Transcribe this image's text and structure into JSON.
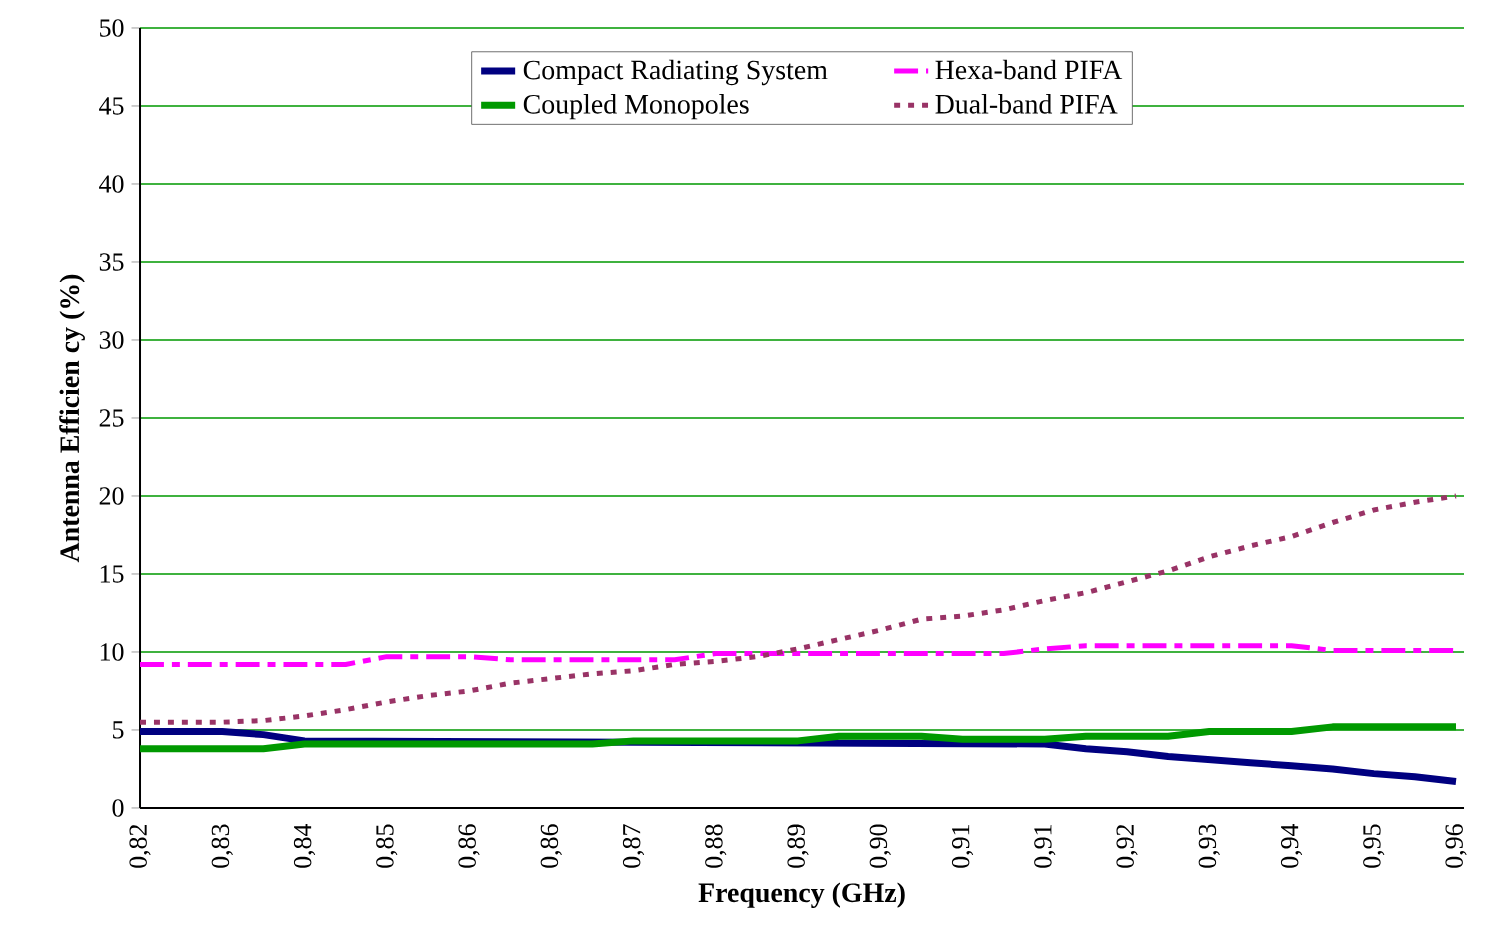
{
  "chart_data": {
    "type": "line",
    "xlabel": "Frequency (GHz)",
    "ylabel": "Antenna Efficien cy  (%)",
    "categories": [
      "0,82",
      null,
      "0,83",
      null,
      "0,84",
      null,
      "0,85",
      null,
      "0,86",
      null,
      "0,86",
      null,
      "0,87",
      null,
      "0,88",
      null,
      "0,89",
      null,
      "0,90",
      null,
      "0,91",
      null,
      "0,91",
      null,
      "0,92",
      null,
      "0,93",
      null,
      "0,94",
      null,
      "0,95",
      null,
      "0,96"
    ],
    "series": [
      {
        "name": "Compact Radiating System",
        "color": "#000080",
        "line_style": "solid",
        "values": [
          4.9,
          4.9,
          4.9,
          4.7,
          4.3,
          null,
          null,
          null,
          null,
          null,
          null,
          null,
          null,
          null,
          null,
          null,
          null,
          null,
          null,
          null,
          null,
          null,
          4.1,
          3.8,
          3.6,
          3.3,
          3.1,
          2.9,
          2.7,
          2.5,
          2.2,
          2.0,
          1.7
        ]
      },
      {
        "name": "Coupled Monopoles",
        "color": "#009900",
        "line_style": "solid",
        "values": [
          3.8,
          3.8,
          3.8,
          3.8,
          4.1,
          4.1,
          4.1,
          4.1,
          4.1,
          4.1,
          4.1,
          4.1,
          4.3,
          4.3,
          4.3,
          4.3,
          4.3,
          4.6,
          4.6,
          4.6,
          4.4,
          4.4,
          4.4,
          4.6,
          4.6,
          4.6,
          4.9,
          4.9,
          4.9,
          5.2,
          5.2,
          5.2,
          5.2
        ]
      },
      {
        "name": "Hexa-band PIFA",
        "color": "#ff00ff",
        "line_style": "dashed",
        "values": [
          9.2,
          9.2,
          9.2,
          9.2,
          9.2,
          9.2,
          9.7,
          9.7,
          9.7,
          9.5,
          9.5,
          9.5,
          9.5,
          9.5,
          9.9,
          9.9,
          9.9,
          9.9,
          9.9,
          9.9,
          9.9,
          9.9,
          10.2,
          10.4,
          10.4,
          10.4,
          10.4,
          10.4,
          10.4,
          10.1,
          10.1,
          10.1,
          10.1
        ]
      },
      {
        "name": "Dual-band PIFA",
        "color": "#993366",
        "line_style": "dotted",
        "values": [
          5.5,
          5.5,
          5.5,
          5.6,
          5.9,
          6.3,
          6.8,
          7.2,
          7.5,
          8.0,
          8.3,
          8.6,
          8.8,
          9.2,
          9.4,
          9.7,
          10.2,
          10.8,
          11.4,
          12.1,
          12.3,
          12.7,
          13.3,
          13.8,
          14.5,
          15.2,
          16.1,
          16.8,
          17.4,
          18.3,
          19.1,
          19.6,
          20.0
        ]
      }
    ],
    "ylim": [
      0,
      50
    ],
    "yticks": [
      0,
      5,
      10,
      15,
      20,
      25,
      30,
      35,
      40,
      45,
      50
    ],
    "grid": "y",
    "legend": "top",
    "marker": "none"
  }
}
